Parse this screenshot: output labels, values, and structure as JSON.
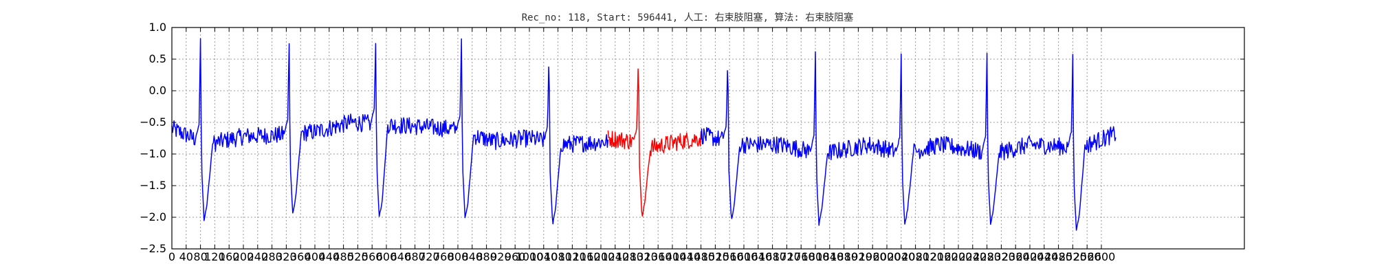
{
  "chart_data": {
    "type": "line",
    "title": "Rec_no: 118, Start: 596441, 人工: 右束肢阻塞, 算法: 右束肢阻塞",
    "xlabel": "",
    "ylabel": "",
    "xlim": [
      0,
      3000
    ],
    "ylim": [
      -2.5,
      1.0
    ],
    "grid": true,
    "yticks": [
      -2.5,
      -2.0,
      -1.5,
      -1.0,
      -0.5,
      0.0,
      0.5,
      1.0
    ],
    "yticklabels": [
      "−2.5",
      "−2.0",
      "−1.5",
      "−1.0",
      "−0.5",
      "0.0",
      "0.5",
      "1.0"
    ],
    "xticks": [
      0,
      40,
      80,
      120,
      160,
      200,
      240,
      280,
      320,
      360,
      400,
      440,
      480,
      520,
      560,
      600,
      640,
      680,
      720,
      760,
      800,
      840,
      880,
      920,
      960,
      1000,
      1040,
      1080,
      1120,
      1160,
      1200,
      1240,
      1280,
      1320,
      1360,
      1400,
      1440,
      1480,
      1520,
      1560,
      1600,
      1640,
      1680,
      1720,
      1760,
      1800,
      1840,
      1880,
      1920,
      1960,
      2000,
      2040,
      2080,
      2120,
      2160,
      2200,
      2240,
      2280,
      2320,
      2360,
      2400,
      2440,
      2480,
      2520,
      2560,
      2600
    ],
    "x_end": 2640,
    "series": [
      {
        "color": "#0000ff",
        "x_start": 0,
        "x_end": 1220,
        "beats": [
          {
            "r": 80,
            "peak": 0.82,
            "trough": -2.05
          },
          {
            "r": 328,
            "peak": 0.75,
            "trough": -1.95
          },
          {
            "r": 570,
            "peak": 0.75,
            "trough": -2.0
          },
          {
            "r": 810,
            "peak": 0.84,
            "trough": -2.02
          },
          {
            "r": 1055,
            "peak": 0.68,
            "trough": -2.12
          }
        ],
        "baseline": [
          [
            0,
            -0.6
          ],
          [
            100,
            -0.85
          ],
          [
            200,
            -0.72
          ],
          [
            300,
            -0.7
          ],
          [
            400,
            -0.65
          ],
          [
            500,
            -0.5
          ],
          [
            650,
            -0.55
          ],
          [
            780,
            -0.6
          ],
          [
            900,
            -0.8
          ],
          [
            1000,
            -0.75
          ],
          [
            1100,
            -0.85
          ],
          [
            1220,
            -0.8
          ]
        ]
      },
      {
        "color": "#ff0000",
        "x_start": 1220,
        "x_end": 1480,
        "beats": [
          {
            "r": 1305,
            "peak": 0.68,
            "trough": -2.0
          }
        ],
        "baseline": [
          [
            1220,
            -0.75
          ],
          [
            1290,
            -0.8
          ],
          [
            1340,
            -0.9
          ],
          [
            1420,
            -0.8
          ],
          [
            1480,
            -0.75
          ]
        ]
      },
      {
        "color": "#0000ff",
        "x_start": 1480,
        "x_end": 2640,
        "beats": [
          {
            "r": 1555,
            "peak": 0.62,
            "trough": -2.05
          },
          {
            "r": 1800,
            "peak": 0.62,
            "trough": -2.12
          },
          {
            "r": 2040,
            "peak": 0.58,
            "trough": -2.12
          },
          {
            "r": 2280,
            "peak": 0.58,
            "trough": -2.12
          },
          {
            "r": 2520,
            "peak": 0.56,
            "trough": -2.22
          }
        ],
        "baseline": [
          [
            1480,
            -0.7
          ],
          [
            1600,
            -0.85
          ],
          [
            1700,
            -0.85
          ],
          [
            1820,
            -1.0
          ],
          [
            1950,
            -0.85
          ],
          [
            2050,
            -1.0
          ],
          [
            2150,
            -0.85
          ],
          [
            2300,
            -1.0
          ],
          [
            2400,
            -0.85
          ],
          [
            2540,
            -0.9
          ],
          [
            2640,
            -0.68
          ]
        ]
      }
    ]
  }
}
